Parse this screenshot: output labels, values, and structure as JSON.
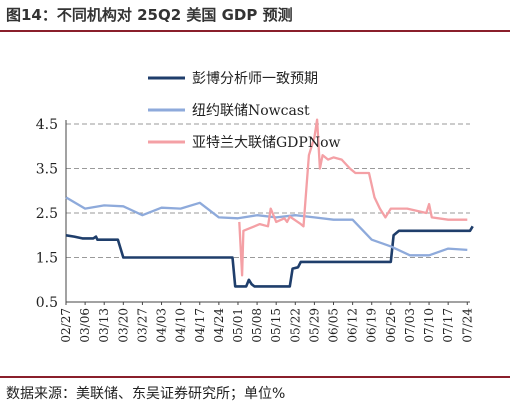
{
  "title": "图14：不同机构对 25Q2 美国 GDP 预测",
  "source": "数据来源：美联储、东吴证券研究所；单位%",
  "chart_data": {
    "type": "line",
    "ylim": [
      0.5,
      4.5
    ],
    "yticks": [
      "0.5",
      "1.5",
      "2.5",
      "3.5",
      "4.5"
    ],
    "grid": "horizontal dashed",
    "legend_position": "top-right",
    "x_tick_labels": [
      "02/27",
      "03/06",
      "03/13",
      "03/20",
      "03/27",
      "04/03",
      "04/10",
      "04/17",
      "04/24",
      "05/01",
      "05/08",
      "05/15",
      "05/22",
      "05/29",
      "06/05",
      "06/12",
      "06/19",
      "06/26",
      "07/03",
      "07/10",
      "07/17",
      "07/24"
    ],
    "series": [
      {
        "name": "彭博分析师一致预期",
        "color": "#1f3e6b",
        "points": [
          [
            0,
            2.0
          ],
          [
            3,
            1.97
          ],
          [
            6,
            1.93
          ],
          [
            10,
            1.93
          ],
          [
            11,
            1.97
          ],
          [
            11.5,
            1.9
          ],
          [
            19,
            1.9
          ],
          [
            20,
            1.7
          ],
          [
            21,
            1.5
          ],
          [
            61,
            1.5
          ],
          [
            62,
            0.85
          ],
          [
            66,
            0.85
          ],
          [
            67,
            1.0
          ],
          [
            68,
            0.9
          ],
          [
            69,
            0.85
          ],
          [
            82,
            0.85
          ],
          [
            83,
            1.25
          ],
          [
            85,
            1.28
          ],
          [
            86,
            1.4
          ],
          [
            119,
            1.4
          ],
          [
            120,
            2.0
          ],
          [
            122,
            2.1
          ],
          [
            148,
            2.1
          ],
          [
            149,
            2.2
          ]
        ]
      },
      {
        "name": "纽约联储Nowcast",
        "color": "#8eaadb",
        "points": [
          [
            0,
            2.85
          ],
          [
            7,
            2.6
          ],
          [
            14,
            2.67
          ],
          [
            21,
            2.65
          ],
          [
            28,
            2.45
          ],
          [
            35,
            2.62
          ],
          [
            42,
            2.6
          ],
          [
            49,
            2.73
          ],
          [
            56,
            2.4
          ],
          [
            63,
            2.38
          ],
          [
            70,
            2.45
          ],
          [
            77,
            2.4
          ],
          [
            84,
            2.45
          ],
          [
            91,
            2.4
          ],
          [
            98,
            2.35
          ],
          [
            105,
            2.35
          ],
          [
            112,
            1.9
          ],
          [
            119,
            1.75
          ],
          [
            126,
            1.55
          ],
          [
            133,
            1.55
          ],
          [
            140,
            1.7
          ],
          [
            147,
            1.67
          ]
        ]
      },
      {
        "name": "亚特兰大联储GDPNow",
        "color": "#f4a0a5",
        "points": [
          [
            63.5,
            2.3
          ],
          [
            64.5,
            1.1
          ],
          [
            65,
            2.1
          ],
          [
            67,
            2.15
          ],
          [
            71,
            2.25
          ],
          [
            74,
            2.2
          ],
          [
            75,
            2.6
          ],
          [
            77,
            2.3
          ],
          [
            80,
            2.38
          ],
          [
            81,
            2.3
          ],
          [
            82,
            2.42
          ],
          [
            86,
            2.25
          ],
          [
            87,
            2.2
          ],
          [
            89,
            3.8
          ],
          [
            91,
            4.2
          ],
          [
            92,
            4.6
          ],
          [
            93,
            3.5
          ],
          [
            94,
            3.8
          ],
          [
            96,
            3.7
          ],
          [
            98,
            3.75
          ],
          [
            101,
            3.7
          ],
          [
            104,
            3.5
          ],
          [
            106,
            3.4
          ],
          [
            111,
            3.4
          ],
          [
            113,
            2.85
          ],
          [
            115,
            2.6
          ],
          [
            117,
            2.4
          ],
          [
            119,
            2.6
          ],
          [
            125,
            2.6
          ],
          [
            132,
            2.5
          ],
          [
            133,
            2.7
          ],
          [
            134,
            2.4
          ],
          [
            140,
            2.35
          ],
          [
            147,
            2.35
          ]
        ]
      }
    ]
  }
}
